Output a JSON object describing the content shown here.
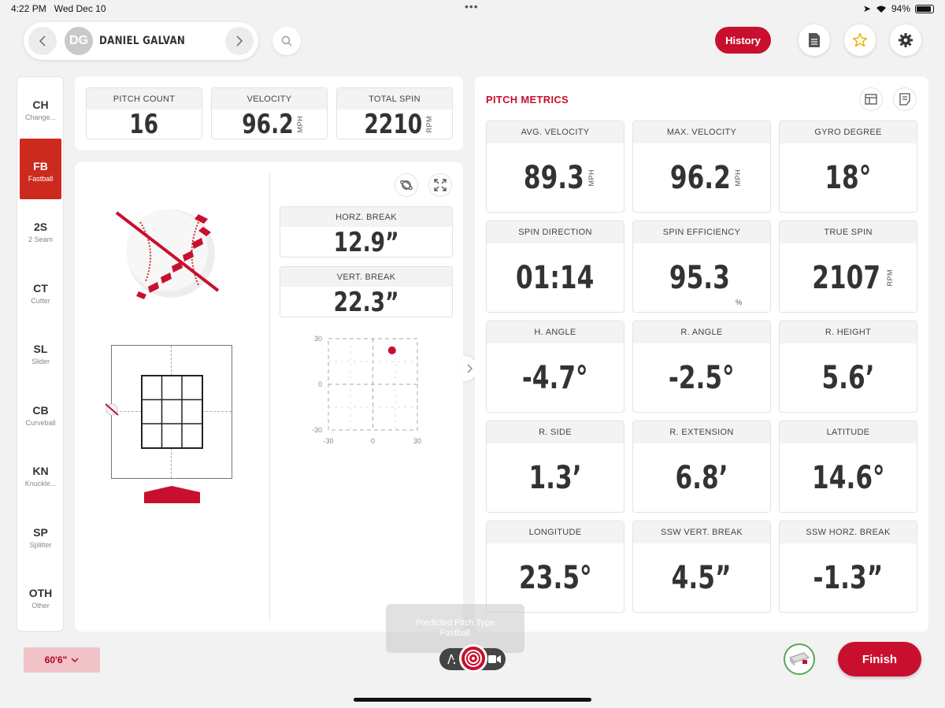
{
  "status_bar": {
    "time": "4:22 PM",
    "date": "Wed Dec 10",
    "battery": "94%"
  },
  "header": {
    "player_initials": "DG",
    "player_name": "DANIEL GALVAN",
    "history_label": "History"
  },
  "pitch_types": [
    {
      "code": "CH",
      "name": "Change...",
      "active": false
    },
    {
      "code": "FB",
      "name": "Fastball",
      "active": true
    },
    {
      "code": "2S",
      "name": "2 Seam",
      "active": false
    },
    {
      "code": "CT",
      "name": "Cutter",
      "active": false
    },
    {
      "code": "SL",
      "name": "Slider",
      "active": false
    },
    {
      "code": "CB",
      "name": "Curveball",
      "active": false
    },
    {
      "code": "KN",
      "name": "Knuckle...",
      "active": false
    },
    {
      "code": "SP",
      "name": "Splitter",
      "active": false
    },
    {
      "code": "OTH",
      "name": "Other",
      "active": false
    }
  ],
  "summary": {
    "pitch_count": {
      "label": "PITCH COUNT",
      "value": "16"
    },
    "velocity": {
      "label": "VELOCITY",
      "value": "96.2",
      "unit": "MPH"
    },
    "total_spin": {
      "label": "TOTAL SPIN",
      "value": "2210",
      "unit": "RPM"
    }
  },
  "breaks": {
    "horz": {
      "label": "HORZ. BREAK",
      "value": "12.9”"
    },
    "vert": {
      "label": "VERT. BREAK",
      "value": "22.3”"
    }
  },
  "break_plot": {
    "y_ticks": [
      "30",
      "0",
      "-30"
    ],
    "x_ticks": [
      "-30",
      "0",
      "30"
    ],
    "point": {
      "x": 12.9,
      "y": 22.3
    },
    "range": [
      -30,
      30
    ],
    "point_color": "#c8102e"
  },
  "metrics": {
    "title": "PITCH METRICS",
    "cards": [
      {
        "label": "AVG. VELOCITY",
        "value": "89.3",
        "unit": "MPH"
      },
      {
        "label": "MAX. VELOCITY",
        "value": "96.2",
        "unit": "MPH"
      },
      {
        "label": "GYRO DEGREE",
        "value": "18°",
        "unit": ""
      },
      {
        "label": "SPIN DIRECTION",
        "value": "01:14",
        "unit": ""
      },
      {
        "label": "SPIN EFFICIENCY",
        "value": "95.3",
        "unit": "%"
      },
      {
        "label": "TRUE SPIN",
        "value": "2107",
        "unit": "RPM"
      },
      {
        "label": "H. ANGLE",
        "value": "-4.7°",
        "unit": ""
      },
      {
        "label": "R. ANGLE",
        "value": "-2.5°",
        "unit": ""
      },
      {
        "label": "R. HEIGHT",
        "value": "5.6’",
        "unit": ""
      },
      {
        "label": "R. SIDE",
        "value": "1.3’",
        "unit": ""
      },
      {
        "label": "R. EXTENSION",
        "value": "6.8’",
        "unit": ""
      },
      {
        "label": "LATITUDE",
        "value": "14.6°",
        "unit": ""
      },
      {
        "label": "LONGITUDE",
        "value": "23.5°",
        "unit": ""
      },
      {
        "label": "SSW VERT. BREAK",
        "value": "4.5”",
        "unit": ""
      },
      {
        "label": "SSW HORZ. BREAK",
        "value": "-1.3”",
        "unit": ""
      }
    ]
  },
  "bottom": {
    "distance_label": "60'6\"",
    "predicted_title": "Predicted Pitch Type",
    "predicted_value": "Fastball",
    "finish_label": "Finish"
  },
  "colors": {
    "accent": "#c8102e",
    "active_pitch": "#cc2a1e"
  }
}
